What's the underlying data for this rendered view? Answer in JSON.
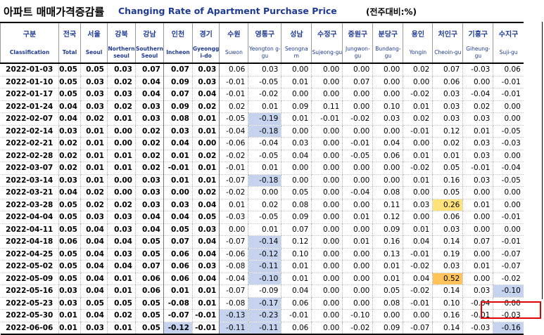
{
  "header": {
    "title_kr": "아파트 매매가격증감률",
    "title_en": "Changing Rate of Apartment Purchase Price",
    "unit": "(전주대비:%)"
  },
  "columns": [
    {
      "kr": "구분",
      "en": "Classification"
    },
    {
      "kr": "전국",
      "en": "Total"
    },
    {
      "kr": "서울",
      "en": "Seoul"
    },
    {
      "kr": "강북",
      "en": "Northern seoul"
    },
    {
      "kr": "강남",
      "en": "Southern Seoul"
    },
    {
      "kr": "인천",
      "en": "Incheon"
    },
    {
      "kr": "경기",
      "en": "Gyeongg i-do"
    },
    {
      "kr": "수원",
      "en": "Suwon"
    },
    {
      "kr": "영통구",
      "en": "Yeongton g-gu"
    },
    {
      "kr": "성남",
      "en": "Seongna m"
    },
    {
      "kr": "수정구",
      "en": "Sujeong-gu"
    },
    {
      "kr": "중원구",
      "en": "Jungwon-gu"
    },
    {
      "kr": "분당구",
      "en": "Bundang-gu"
    },
    {
      "kr": "용인",
      "en": "Yongin"
    },
    {
      "kr": "처인구",
      "en": "Cheoin-gu"
    },
    {
      "kr": "기흥구",
      "en": "Giheung-gu"
    },
    {
      "kr": "수지구",
      "en": "Suji-gu"
    }
  ],
  "rows": [
    {
      "date": "2022-01-03",
      "v": [
        "0.05",
        "0.05",
        "0.03",
        "0.07",
        "0.07",
        "0.03",
        "0.06",
        "0.03",
        "0.00",
        "0.00",
        "0.00",
        "0.00",
        "0.02",
        "0.07",
        "-0.03",
        "0.06"
      ]
    },
    {
      "date": "2022-01-10",
      "v": [
        "0.05",
        "0.03",
        "0.02",
        "0.04",
        "0.09",
        "0.03",
        "-0.01",
        "-0.05",
        "0.01",
        "0.00",
        "0.07",
        "0.00",
        "0.00",
        "0.06",
        "0.00",
        "-0.01"
      ]
    },
    {
      "date": "2022-01-17",
      "v": [
        "0.05",
        "0.03",
        "0.03",
        "0.04",
        "0.07",
        "0.04",
        "-0.01",
        "-0.02",
        "0.00",
        "0.00",
        "0.00",
        "0.00",
        "-0.02",
        "0.03",
        "-0.04",
        "-0.01"
      ]
    },
    {
      "date": "2022-01-24",
      "v": [
        "0.04",
        "0.03",
        "0.02",
        "0.03",
        "0.09",
        "0.02",
        "0.02",
        "0.01",
        "0.09",
        "0.11",
        "0.00",
        "0.10",
        "0.01",
        "0.03",
        "0.02",
        "0.00"
      ]
    },
    {
      "date": "2022-02-07",
      "v": [
        "0.04",
        "0.02",
        "0.01",
        "0.03",
        "0.08",
        "0.01",
        "-0.05",
        "-0.19",
        "0.01",
        "-0.01",
        "-0.02",
        "0.03",
        "0.02",
        "0.03",
        "0.03",
        "0.00"
      ]
    },
    {
      "date": "2022-02-14",
      "v": [
        "0.03",
        "0.01",
        "0.00",
        "0.02",
        "0.03",
        "0.01",
        "-0.04",
        "-0.18",
        "0.00",
        "0.00",
        "0.00",
        "0.00",
        "-0.01",
        "0.12",
        "0.01",
        "-0.05"
      ]
    },
    {
      "date": "2022-02-21",
      "v": [
        "0.02",
        "0.01",
        "0.00",
        "0.02",
        "0.04",
        "0.00",
        "-0.06",
        "-0.04",
        "0.03",
        "0.00",
        "-0.01",
        "0.04",
        "0.00",
        "0.02",
        "0.03",
        "-0.03"
      ]
    },
    {
      "date": "2022-02-28",
      "v": [
        "0.02",
        "0.01",
        "0.01",
        "0.02",
        "0.01",
        "0.02",
        "-0.02",
        "-0.05",
        "0.04",
        "0.00",
        "-0.05",
        "0.06",
        "0.01",
        "0.01",
        "0.03",
        "0.00"
      ]
    },
    {
      "date": "2022-03-07",
      "v": [
        "0.02",
        "0.01",
        "0.01",
        "0.02",
        "-0.01",
        "0.01",
        "-0.01",
        "0.01",
        "0.00",
        "0.00",
        "0.00",
        "0.00",
        "-0.02",
        "0.05",
        "-0.01",
        "-0.04"
      ]
    },
    {
      "date": "2022-03-14",
      "v": [
        "0.03",
        "0.01",
        "0.00",
        "0.03",
        "0.01",
        "0.01",
        "-0.07",
        "-0.18",
        "0.00",
        "0.00",
        "0.00",
        "0.00",
        "0.01",
        "0.16",
        "0.03",
        "-0.05"
      ]
    },
    {
      "date": "2022-03-21",
      "v": [
        "0.04",
        "0.02",
        "0.00",
        "0.03",
        "0.00",
        "0.02",
        "-0.02",
        "0.00",
        "0.05",
        "0.00",
        "-0.04",
        "0.08",
        "0.00",
        "0.05",
        "0.00",
        "0.00"
      ]
    },
    {
      "date": "2022-03-28",
      "v": [
        "0.05",
        "0.02",
        "0.02",
        "0.03",
        "0.03",
        "0.04",
        "0.01",
        "0.02",
        "0.08",
        "0.00",
        "0.00",
        "0.11",
        "0.03",
        "0.26",
        "0.01",
        "0.00"
      ]
    },
    {
      "date": "2022-04-04",
      "v": [
        "0.05",
        "0.03",
        "0.03",
        "0.04",
        "0.04",
        "0.05",
        "-0.03",
        "-0.05",
        "0.09",
        "0.00",
        "0.01",
        "0.12",
        "0.00",
        "0.06",
        "0.00",
        "-0.01"
      ]
    },
    {
      "date": "2022-04-11",
      "v": [
        "0.05",
        "0.04",
        "0.03",
        "0.04",
        "0.05",
        "0.03",
        "0.00",
        "0.01",
        "0.07",
        "0.00",
        "0.00",
        "0.09",
        "0.01",
        "0.03",
        "0.00",
        "0.00"
      ]
    },
    {
      "date": "2022-04-18",
      "v": [
        "0.06",
        "0.04",
        "0.04",
        "0.05",
        "0.07",
        "0.04",
        "-0.07",
        "-0.14",
        "0.12",
        "0.00",
        "0.01",
        "0.16",
        "0.04",
        "0.14",
        "0.07",
        "-0.01"
      ]
    },
    {
      "date": "2022-04-25",
      "v": [
        "0.05",
        "0.04",
        "0.03",
        "0.05",
        "0.06",
        "0.04",
        "-0.06",
        "-0.12",
        "0.10",
        "0.00",
        "0.00",
        "0.13",
        "-0.01",
        "0.19",
        "0.00",
        "-0.07"
      ]
    },
    {
      "date": "2022-05-02",
      "v": [
        "0.05",
        "0.04",
        "0.04",
        "0.07",
        "0.06",
        "0.03",
        "-0.08",
        "-0.11",
        "0.01",
        "0.00",
        "0.00",
        "0.01",
        "-0.02",
        "0.03",
        "0.01",
        "-0.07"
      ]
    },
    {
      "date": "2022-05-09",
      "v": [
        "0.05",
        "0.04",
        "0.01",
        "0.06",
        "0.06",
        "0.04",
        "-0.04",
        "-0.10",
        "0.01",
        "0.00",
        "0.00",
        "0.01",
        "0.04",
        "0.52",
        "0.00",
        "-0.02"
      ]
    },
    {
      "date": "2022-05-16",
      "v": [
        "0.03",
        "0.04",
        "0.01",
        "0.06",
        "0.01",
        "0.01",
        "-0.07",
        "-0.09",
        "0.04",
        "0.00",
        "0.00",
        "0.05",
        "-0.02",
        "0.14",
        "0.03",
        "-0.10"
      ]
    },
    {
      "date": "2022-05-23",
      "v": [
        "0.03",
        "0.05",
        "0.05",
        "0.05",
        "-0.08",
        "0.01",
        "-0.08",
        "-0.17",
        "0.06",
        "0.00",
        "0.00",
        "0.08",
        "-0.01",
        "0.10",
        "-0.04",
        "0.00"
      ]
    },
    {
      "date": "2022-05-30",
      "v": [
        "0.01",
        "0.04",
        "0.02",
        "0.05",
        "-0.07",
        "-0.01",
        "-0.13",
        "-0.23",
        "-0.01",
        "0.00",
        "-0.10",
        "0.00",
        "0.00",
        "0.16",
        "-0.01",
        "-0.03"
      ]
    },
    {
      "date": "2022-06-06",
      "v": [
        "0.01",
        "0.03",
        "0.01",
        "0.05",
        "-0.12",
        "-0.01",
        "-0.11",
        "-0.11",
        "0.06",
        "0.00",
        "-0.02",
        "0.09",
        "-0.07",
        "0.14",
        "-0.03",
        "-0.16"
      ]
    }
  ],
  "colors": {
    "title_en": "#1f3a93",
    "highlight_blue": "#c5d3ee",
    "highlight_orange": "#ffc35a",
    "highlight_yellow": "#ffe27a",
    "red_frame": "#e00000"
  }
}
